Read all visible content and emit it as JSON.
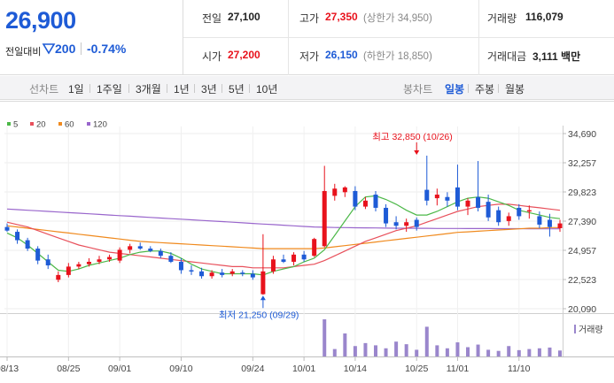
{
  "quote": {
    "price": "26,900",
    "change_label": "전일대비",
    "change_value": "200",
    "change_pct": "-0.74%"
  },
  "stats": {
    "prev_close_label": "전일",
    "prev_close": "27,100",
    "high_label": "고가",
    "high": "27,350",
    "upper_limit": "(상한가 34,950)",
    "volume_label": "거래량",
    "volume": "116,079",
    "open_label": "시가",
    "open": "27,200",
    "low_label": "저가",
    "low": "26,150",
    "lower_limit": "(하한가 18,850)",
    "value_label": "거래대금",
    "value": "3,111 백만"
  },
  "toolbar": {
    "line_head": "선차트",
    "line_periods": [
      "1일",
      "1주일",
      "3개월",
      "1년",
      "3년",
      "5년",
      "10년"
    ],
    "candle_head": "봉차트",
    "candle_periods": [
      "일봉",
      "주봉",
      "월봉"
    ],
    "active_candle": "일봉"
  },
  "colors": {
    "up": "#e8121c",
    "down": "#1e5bd6",
    "ma5": "#4cb848",
    "ma20": "#e8505b",
    "ma60": "#f08a1e",
    "ma120": "#9966cc",
    "volume": "#9a86cc"
  },
  "chart_data": {
    "type": "candlestick",
    "legend": [
      {
        "name": "5",
        "color": "#4cb848"
      },
      {
        "name": "20",
        "color": "#e8505b"
      },
      {
        "name": "60",
        "color": "#f08a1e"
      },
      {
        "name": "120",
        "color": "#9966cc"
      }
    ],
    "y_ticks": [
      "34,690",
      "32,257",
      "29,823",
      "27,390",
      "24,957",
      "22,523",
      "20,090"
    ],
    "y_tick_values": [
      34690,
      32257,
      29823,
      27390,
      24957,
      22523,
      20090
    ],
    "ylim": [
      20090,
      34690
    ],
    "x_ticks": [
      {
        "label": "08/13",
        "index": 0
      },
      {
        "label": "08/25",
        "index": 6
      },
      {
        "label": "09/01",
        "index": 11
      },
      {
        "label": "09/10",
        "index": 17
      },
      {
        "label": "09/24",
        "index": 24
      },
      {
        "label": "10/01",
        "index": 29
      },
      {
        "label": "10/14",
        "index": 34
      },
      {
        "label": "10/25",
        "index": 40
      },
      {
        "label": "11/01",
        "index": 44
      },
      {
        "label": "11/10",
        "index": 50
      }
    ],
    "volume_legend": "거래량",
    "max_annotation": {
      "text": "최고 32,850 (10/26)",
      "value": 32850,
      "index": 40
    },
    "min_annotation": {
      "text": "최저 21,250 (09/29)",
      "value": 21250,
      "index": 25
    },
    "candles": [
      {
        "o": 26900,
        "h": 27200,
        "l": 26500,
        "c": 26600
      },
      {
        "o": 26500,
        "h": 26700,
        "l": 25500,
        "c": 25800
      },
      {
        "o": 25800,
        "h": 26000,
        "l": 24900,
        "c": 25100
      },
      {
        "o": 25100,
        "h": 25300,
        "l": 23800,
        "c": 24100
      },
      {
        "o": 24200,
        "h": 24600,
        "l": 23400,
        "c": 23700
      },
      {
        "o": 22500,
        "h": 23200,
        "l": 22300,
        "c": 22900
      },
      {
        "o": 22900,
        "h": 23900,
        "l": 22700,
        "c": 23600
      },
      {
        "o": 23600,
        "h": 24000,
        "l": 23400,
        "c": 23800
      },
      {
        "o": 23800,
        "h": 24300,
        "l": 23600,
        "c": 24000
      },
      {
        "o": 24000,
        "h": 24500,
        "l": 23800,
        "c": 24200
      },
      {
        "o": 24200,
        "h": 24600,
        "l": 24000,
        "c": 24400
      },
      {
        "o": 24100,
        "h": 25200,
        "l": 23900,
        "c": 25000
      },
      {
        "o": 25000,
        "h": 25500,
        "l": 24700,
        "c": 25300
      },
      {
        "o": 25300,
        "h": 25600,
        "l": 25000,
        "c": 25100
      },
      {
        "o": 25100,
        "h": 25300,
        "l": 24800,
        "c": 24900
      },
      {
        "o": 24900,
        "h": 25100,
        "l": 24300,
        "c": 24500
      },
      {
        "o": 24500,
        "h": 24800,
        "l": 23900,
        "c": 24000
      },
      {
        "o": 24000,
        "h": 24300,
        "l": 23000,
        "c": 23300
      },
      {
        "o": 23300,
        "h": 23700,
        "l": 22900,
        "c": 23200
      },
      {
        "o": 23200,
        "h": 23500,
        "l": 22600,
        "c": 22800
      },
      {
        "o": 22800,
        "h": 23300,
        "l": 22600,
        "c": 23100
      },
      {
        "o": 23100,
        "h": 23400,
        "l": 22700,
        "c": 22900
      },
      {
        "o": 23000,
        "h": 23400,
        "l": 22800,
        "c": 23200
      },
      {
        "o": 23100,
        "h": 23300,
        "l": 22800,
        "c": 23000
      },
      {
        "o": 23000,
        "h": 23300,
        "l": 22500,
        "c": 22700
      },
      {
        "o": 21300,
        "h": 26300,
        "l": 21250,
        "c": 23200
      },
      {
        "o": 23200,
        "h": 24500,
        "l": 23000,
        "c": 24200
      },
      {
        "o": 24200,
        "h": 24600,
        "l": 23900,
        "c": 24000
      },
      {
        "o": 24000,
        "h": 24800,
        "l": 23700,
        "c": 24600
      },
      {
        "o": 24600,
        "h": 24900,
        "l": 24000,
        "c": 24200
      },
      {
        "o": 24500,
        "h": 26000,
        "l": 24400,
        "c": 25900
      },
      {
        "o": 25300,
        "h": 32000,
        "l": 25200,
        "c": 29900
      },
      {
        "o": 29500,
        "h": 30500,
        "l": 29100,
        "c": 30100
      },
      {
        "o": 29800,
        "h": 30300,
        "l": 29400,
        "c": 30200
      },
      {
        "o": 29900,
        "h": 30300,
        "l": 28300,
        "c": 28600
      },
      {
        "o": 28600,
        "h": 29400,
        "l": 28400,
        "c": 29100
      },
      {
        "o": 29600,
        "h": 29900,
        "l": 28200,
        "c": 28500
      },
      {
        "o": 28500,
        "h": 28800,
        "l": 26900,
        "c": 27200
      },
      {
        "o": 27300,
        "h": 27800,
        "l": 26700,
        "c": 27000
      },
      {
        "o": 27000,
        "h": 27600,
        "l": 26500,
        "c": 27300
      },
      {
        "o": 27500,
        "h": 27700,
        "l": 26600,
        "c": 26900
      },
      {
        "o": 30000,
        "h": 32850,
        "l": 28700,
        "c": 29100
      },
      {
        "o": 29300,
        "h": 30100,
        "l": 28700,
        "c": 29600
      },
      {
        "o": 29400,
        "h": 29800,
        "l": 28600,
        "c": 29100
      },
      {
        "o": 30200,
        "h": 32100,
        "l": 28300,
        "c": 28600
      },
      {
        "o": 28600,
        "h": 29300,
        "l": 27900,
        "c": 29100
      },
      {
        "o": 29400,
        "h": 32400,
        "l": 28200,
        "c": 28500
      },
      {
        "o": 29000,
        "h": 29600,
        "l": 27400,
        "c": 27700
      },
      {
        "o": 28300,
        "h": 28600,
        "l": 27000,
        "c": 27300
      },
      {
        "o": 27400,
        "h": 28100,
        "l": 27000,
        "c": 27800
      },
      {
        "o": 28500,
        "h": 28800,
        "l": 27500,
        "c": 27800
      },
      {
        "o": 28200,
        "h": 28700,
        "l": 27600,
        "c": 28300
      },
      {
        "o": 27800,
        "h": 28200,
        "l": 26800,
        "c": 27100
      },
      {
        "o": 27500,
        "h": 28000,
        "l": 26100,
        "c": 26900
      },
      {
        "o": 26800,
        "h": 27500,
        "l": 26500,
        "c": 27200
      }
    ],
    "volume": [
      0,
      0,
      0,
      0,
      0,
      0,
      0,
      0,
      0,
      0,
      0,
      0,
      0,
      0,
      0,
      0,
      0,
      0,
      0,
      0,
      0,
      0,
      0,
      0,
      0,
      0,
      0,
      0,
      0,
      0,
      0,
      100,
      20,
      62,
      28,
      36,
      30,
      22,
      40,
      33,
      18,
      80,
      30,
      22,
      38,
      25,
      32,
      18,
      15,
      28,
      17,
      20,
      22,
      24,
      16
    ],
    "ma5": [
      26400,
      26000,
      25400,
      24700,
      24000,
      23300,
      23200,
      23400,
      23700,
      23900,
      24100,
      24300,
      24600,
      24800,
      24900,
      24900,
      24700,
      24300,
      23800,
      23400,
      23200,
      23000,
      23000,
      23000,
      23000,
      22900,
      23200,
      23400,
      23600,
      24000,
      24300,
      25000,
      26200,
      27400,
      28600,
      29400,
      29500,
      29200,
      28800,
      28300,
      27900,
      27900,
      28200,
      28600,
      29000,
      29300,
      29400,
      29300,
      29000,
      28700,
      28300,
      28100,
      27900,
      27700,
      27600
    ],
    "ma20": [
      27300,
      27100,
      26900,
      26600,
      26300,
      26000,
      25700,
      25400,
      25200,
      25000,
      24800,
      24700,
      24600,
      24500,
      24400,
      24300,
      24200,
      24100,
      24000,
      23900,
      23800,
      23700,
      23600,
      23600,
      23500,
      23500,
      23500,
      23500,
      23600,
      23700,
      23800,
      24100,
      24500,
      24900,
      25300,
      25700,
      26000,
      26300,
      26600,
      26800,
      27000,
      27300,
      27600,
      27900,
      28200,
      28400,
      28600,
      28700,
      28800,
      28800,
      28700,
      28600,
      28500,
      28400,
      28300
    ],
    "ma60": [
      27000,
      26900,
      26800,
      26700,
      26600,
      26500,
      26400,
      26300,
      26200,
      26100,
      26000,
      25900,
      25800,
      25700,
      25650,
      25600,
      25550,
      25500,
      25450,
      25400,
      25350,
      25300,
      25250,
      25200,
      25150,
      25100,
      25100,
      25100,
      25100,
      25100,
      25100,
      25150,
      25250,
      25350,
      25450,
      25550,
      25650,
      25750,
      25850,
      25950,
      26050,
      26150,
      26250,
      26350,
      26450,
      26500,
      26550,
      26600,
      26650,
      26700,
      26750,
      26800,
      26800,
      26850,
      26850
    ],
    "ma120": [
      28400,
      28350,
      28300,
      28250,
      28200,
      28150,
      28100,
      28050,
      28000,
      27950,
      27900,
      27850,
      27800,
      27750,
      27700,
      27650,
      27600,
      27550,
      27500,
      27450,
      27400,
      27350,
      27300,
      27250,
      27200,
      27150,
      27100,
      27050,
      27000,
      26950,
      26900,
      26880,
      26860,
      26850,
      26840,
      26830,
      26820,
      26810,
      26800,
      26800,
      26790,
      26790,
      26780,
      26780,
      26780,
      26770,
      26770,
      26770,
      26760,
      26760,
      26760,
      26750,
      26750,
      26750,
      26750
    ]
  }
}
